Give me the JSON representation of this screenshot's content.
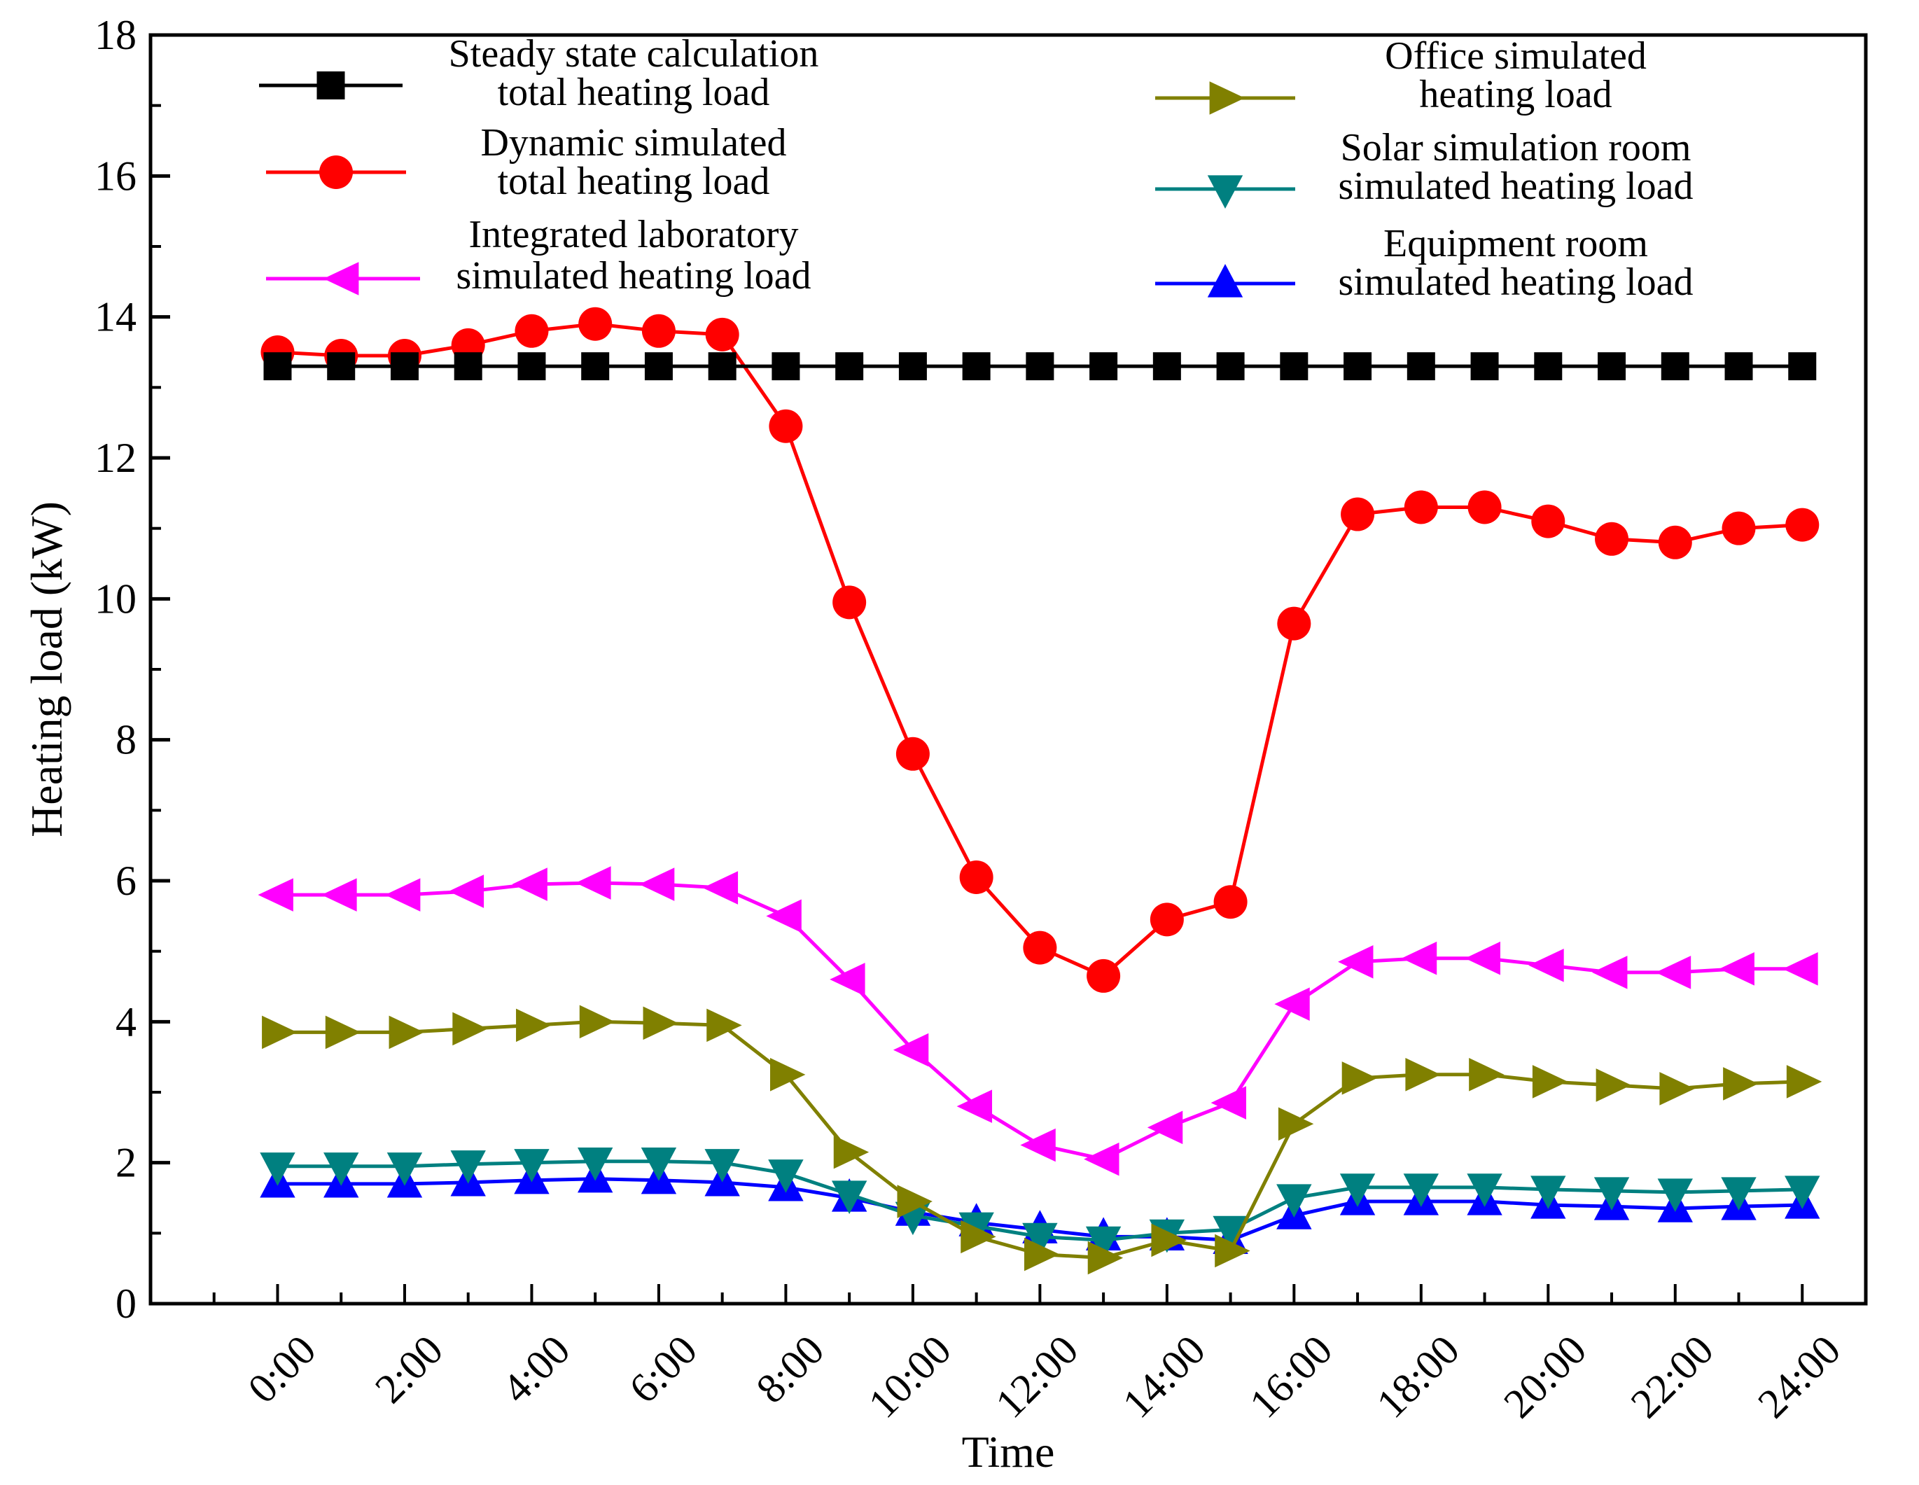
{
  "chart_data": {
    "type": "line",
    "title": "",
    "xlabel": "Time",
    "ylabel": "Heating load (kW)",
    "ylim": [
      0,
      18
    ],
    "yticks": [
      0,
      2,
      4,
      6,
      8,
      10,
      12,
      14,
      16,
      18
    ],
    "xlim": [
      -2,
      25
    ],
    "xtick_values": [
      0,
      2,
      4,
      6,
      8,
      10,
      12,
      14,
      16,
      18,
      20,
      22,
      24
    ],
    "xtick_labels": [
      "0:00",
      "2:00",
      "4:00",
      "6:00",
      "8:00",
      "10:00",
      "12:00",
      "14:00",
      "16:00",
      "18:00",
      "20:00",
      "22:00",
      "24:00"
    ],
    "x": [
      0,
      1,
      2,
      3,
      4,
      5,
      6,
      7,
      8,
      9,
      10,
      11,
      12,
      13,
      14,
      15,
      16,
      17,
      18,
      19,
      20,
      21,
      22,
      23,
      24
    ],
    "legend_position": "top",
    "series": [
      {
        "name": "Steady state calculation total heating load",
        "legend_lines": [
          "Steady state calculation",
          "total heating load"
        ],
        "color": "#000000",
        "marker": "square",
        "values": [
          13.3,
          13.3,
          13.3,
          13.3,
          13.3,
          13.3,
          13.3,
          13.3,
          13.3,
          13.3,
          13.3,
          13.3,
          13.3,
          13.3,
          13.3,
          13.3,
          13.3,
          13.3,
          13.3,
          13.3,
          13.3,
          13.3,
          13.3,
          13.3,
          13.3
        ]
      },
      {
        "name": "Dynamic simulated total heating load",
        "legend_lines": [
          "Dynamic simulated",
          "total heating load"
        ],
        "color": "#ff0000",
        "marker": "circle",
        "values": [
          13.5,
          13.45,
          13.45,
          13.6,
          13.8,
          13.9,
          13.8,
          13.75,
          12.45,
          9.95,
          7.8,
          6.05,
          5.05,
          4.65,
          5.45,
          5.7,
          9.65,
          11.2,
          11.3,
          11.3,
          11.1,
          10.85,
          10.8,
          11.0,
          11.05
        ]
      },
      {
        "name": "Integrated laboratory simulated heating load",
        "legend_lines": [
          "Integrated laboratory",
          "simulated heating load"
        ],
        "color": "#ff00ff",
        "marker": "triangle-left",
        "values": [
          5.8,
          5.8,
          5.8,
          5.85,
          5.95,
          5.97,
          5.95,
          5.9,
          5.5,
          4.6,
          3.6,
          2.8,
          2.25,
          2.05,
          2.5,
          2.85,
          4.25,
          4.85,
          4.9,
          4.9,
          4.8,
          4.7,
          4.7,
          4.75,
          4.75
        ]
      },
      {
        "name": "Office simulated heating load",
        "legend_lines": [
          "Office simulated",
          "heating load"
        ],
        "color": "#808000",
        "marker": "triangle-right",
        "values": [
          3.85,
          3.85,
          3.85,
          3.9,
          3.95,
          4.0,
          3.98,
          3.95,
          3.25,
          2.15,
          1.45,
          0.95,
          0.7,
          0.65,
          0.9,
          0.75,
          2.55,
          3.2,
          3.25,
          3.25,
          3.15,
          3.1,
          3.05,
          3.12,
          3.15
        ]
      },
      {
        "name": "Solar simulation room simulated heating load",
        "legend_lines": [
          "Solar simulation room",
          "simulated heating load"
        ],
        "color": "#008080",
        "marker": "triangle-down",
        "values": [
          1.95,
          1.95,
          1.95,
          1.98,
          2.0,
          2.02,
          2.02,
          2.0,
          1.85,
          1.55,
          1.25,
          1.1,
          0.95,
          0.9,
          1.0,
          1.05,
          1.5,
          1.65,
          1.65,
          1.65,
          1.62,
          1.6,
          1.58,
          1.6,
          1.62
        ]
      },
      {
        "name": "Equipment room simulated heating load",
        "legend_lines": [
          "Equipment room",
          "simulated heating load"
        ],
        "color": "#0000ff",
        "marker": "triangle-up",
        "values": [
          1.7,
          1.7,
          1.7,
          1.72,
          1.75,
          1.77,
          1.75,
          1.72,
          1.65,
          1.5,
          1.3,
          1.15,
          1.05,
          0.95,
          0.95,
          0.9,
          1.25,
          1.45,
          1.45,
          1.45,
          1.4,
          1.38,
          1.35,
          1.38,
          1.4
        ]
      }
    ]
  }
}
